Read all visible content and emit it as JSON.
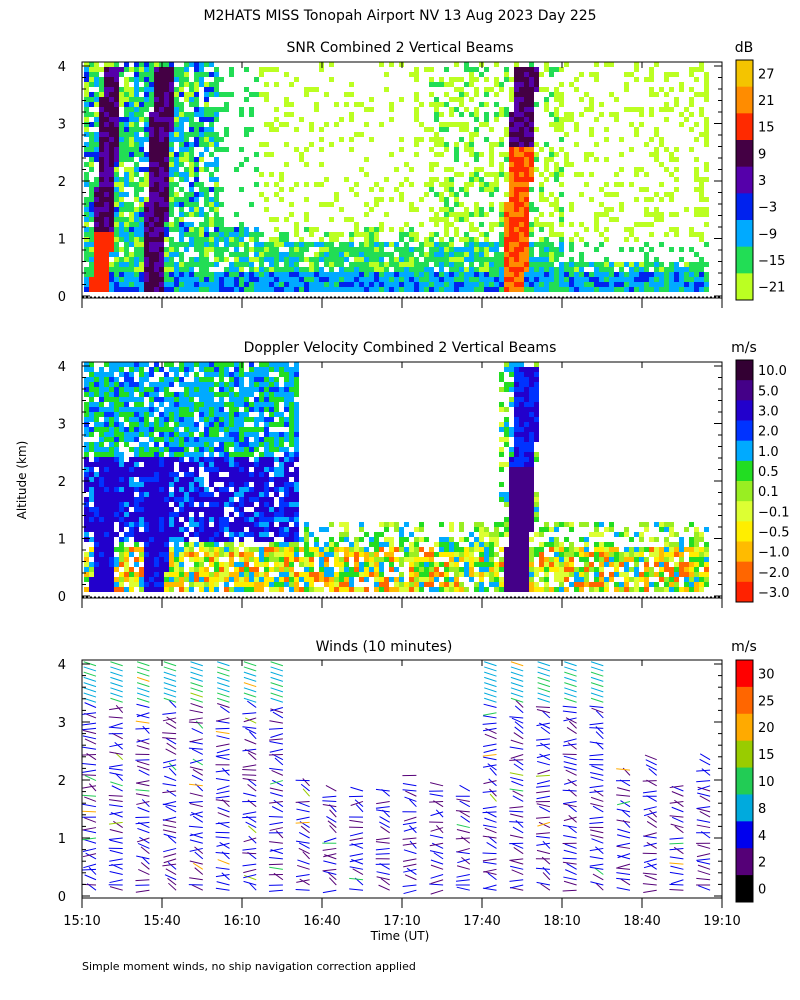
{
  "figure": {
    "title": "M2HATS MISS Tonopah Airport NV  13 Aug 2023 Day 225",
    "shared_ylabel": "Altitude (km)",
    "shared_xlabel": "Time (UT)",
    "footnote": "Simple moment winds, no ship navigation correction applied"
  },
  "chart_data": [
    {
      "type": "heatmap",
      "title": "SNR Combined 2 Vertical Beams",
      "colorbar_unit": "dB",
      "colorbar_labels": [
        "27",
        "21",
        "15",
        "9",
        "3",
        "−3",
        "−9",
        "−15",
        "−21"
      ],
      "colorbar_colors": [
        "#f4c400",
        "#ff8c00",
        "#ff2a00",
        "#440044",
        "#5500aa",
        "#0022ee",
        "#00aaff",
        "#22dd55",
        "#bbff22"
      ],
      "y_ticks": [
        "0",
        "1",
        "2",
        "3",
        "4"
      ],
      "ylim": [
        0,
        4
      ],
      "x_tick_labels": [],
      "xlim": [
        "15:10",
        "19:10"
      ],
      "features": [
        {
          "x_start": "15:17",
          "x_end": "15:24",
          "y_top": 4.0,
          "level": "9 to 15"
        },
        {
          "x_start": "15:36",
          "x_end": "15:44",
          "y_top": 4.0,
          "level": "9"
        },
        {
          "x_start": "17:51",
          "x_end": "18:00",
          "y_top": 4.0,
          "level": "15 to 27"
        }
      ]
    },
    {
      "type": "heatmap",
      "title": "Doppler Velocity Combined 2 Vertical Beams",
      "colorbar_unit": "m/s",
      "colorbar_labels": [
        "10.0",
        "5.0",
        "3.0",
        "2.0",
        "1.0",
        "0.5",
        "0.1",
        "−0.1",
        "−0.5",
        "−1.0",
        "−2.0",
        "−3.0"
      ],
      "colorbar_colors": [
        "#330033",
        "#440088",
        "#2200cc",
        "#0033ff",
        "#00aaff",
        "#22dd22",
        "#99ee22",
        "#ddff33",
        "#ffee00",
        "#ffbb00",
        "#ff6600",
        "#ff2200"
      ],
      "y_ticks": [
        "0",
        "1",
        "2",
        "3",
        "4"
      ],
      "ylim": [
        0,
        4
      ],
      "x_tick_labels": [],
      "xlim": [
        "15:10",
        "19:10"
      ],
      "features": [
        {
          "x_start": "15:17",
          "x_end": "15:25",
          "y_top": 2.5,
          "level": "3.0"
        },
        {
          "x_start": "15:36",
          "x_end": "15:45",
          "y_top": 2.5,
          "level": "3.0"
        },
        {
          "x_start": "17:52",
          "x_end": "18:01",
          "y_top": 4.0,
          "level": "5.0"
        }
      ]
    },
    {
      "type": "scatter",
      "title": "Winds (10 minutes)",
      "colorbar_unit": "m/s",
      "colorbar_labels": [
        "30",
        "25",
        "20",
        "15",
        "10",
        "8",
        "4",
        "2",
        "0"
      ],
      "colorbar_colors": [
        "#ff0000",
        "#ff6600",
        "#ffaa00",
        "#99cc00",
        "#22cc55",
        "#00aadd",
        "#0000ee",
        "#550077",
        "#000000"
      ],
      "y_ticks": [
        "0",
        "1",
        "2",
        "3",
        "4"
      ],
      "ylim": [
        0,
        4
      ],
      "x_tick_labels": [
        "15:10",
        "15:40",
        "16:10",
        "16:40",
        "17:10",
        "17:40",
        "18:10",
        "18:40",
        "19:10"
      ],
      "xlim": [
        "15:10",
        "19:10"
      ],
      "note": "Wind barbs every 10 minutes"
    }
  ]
}
